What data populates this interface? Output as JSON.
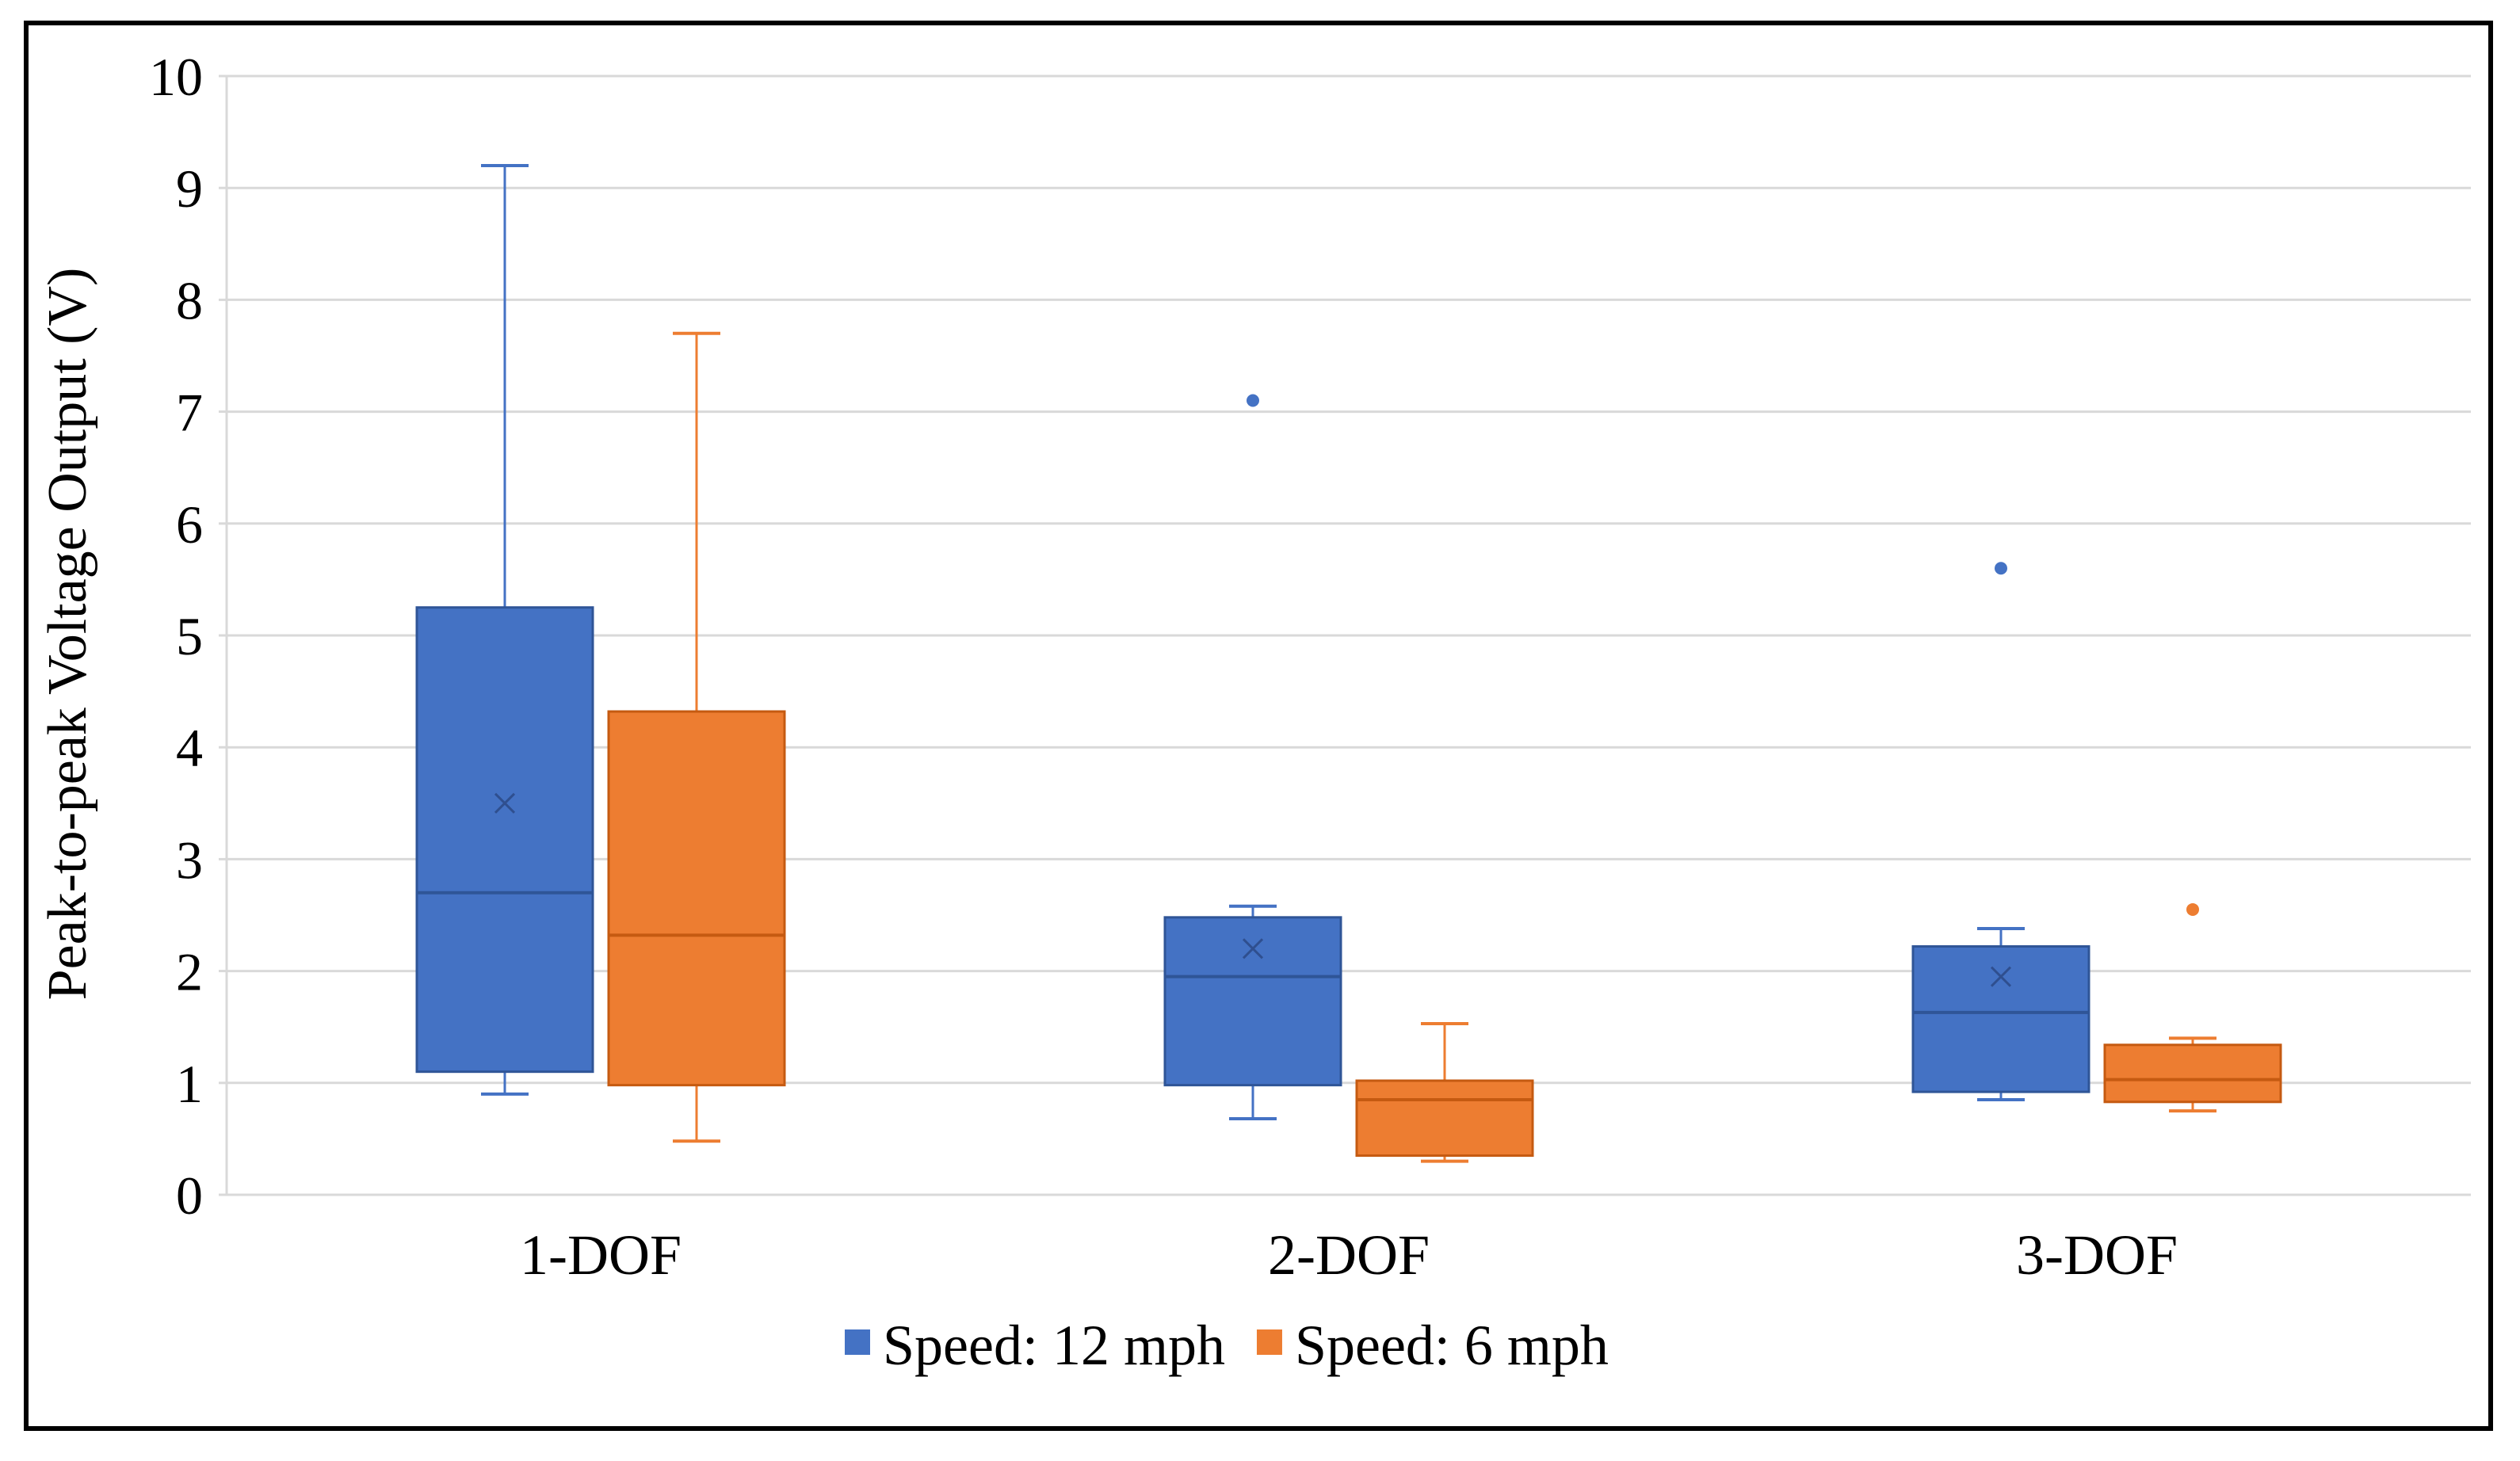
{
  "chart_data": {
    "type": "box",
    "title": "",
    "xlabel": "",
    "ylabel": "Peak-to-peak Voltage Output (V)",
    "ylim": [
      0,
      10
    ],
    "yticks": [
      0,
      1,
      2,
      3,
      4,
      5,
      6,
      7,
      8,
      9,
      10
    ],
    "grid": true,
    "legend_position": "bottom",
    "categories": [
      "1-DOF",
      "2-DOF",
      "3-DOF"
    ],
    "series": [
      {
        "name": "Speed: 12 mph",
        "color": "#4472C4",
        "boxes": [
          {
            "min": 0.9,
            "q1": 1.1,
            "median": 2.7,
            "q3": 5.25,
            "max": 9.2,
            "mean": 3.5,
            "outliers": []
          },
          {
            "min": 0.68,
            "q1": 0.98,
            "median": 1.95,
            "q3": 2.48,
            "max": 2.58,
            "mean": 2.2,
            "outliers": [
              7.1
            ]
          },
          {
            "min": 0.85,
            "q1": 0.92,
            "median": 1.63,
            "q3": 2.22,
            "max": 2.38,
            "mean": 1.95,
            "outliers": [
              5.6
            ]
          }
        ]
      },
      {
        "name": "Speed: 6 mph",
        "color": "#ED7D31",
        "boxes": [
          {
            "min": 0.48,
            "q1": 0.98,
            "median": 2.32,
            "q3": 4.32,
            "max": 7.7,
            "mean": null,
            "outliers": []
          },
          {
            "min": 0.3,
            "q1": 0.35,
            "median": 0.85,
            "q3": 1.02,
            "max": 1.53,
            "mean": null,
            "outliers": []
          },
          {
            "min": 0.75,
            "q1": 0.83,
            "median": 1.03,
            "q3": 1.34,
            "max": 1.4,
            "mean": null,
            "outliers": [
              2.55
            ]
          }
        ]
      }
    ]
  }
}
